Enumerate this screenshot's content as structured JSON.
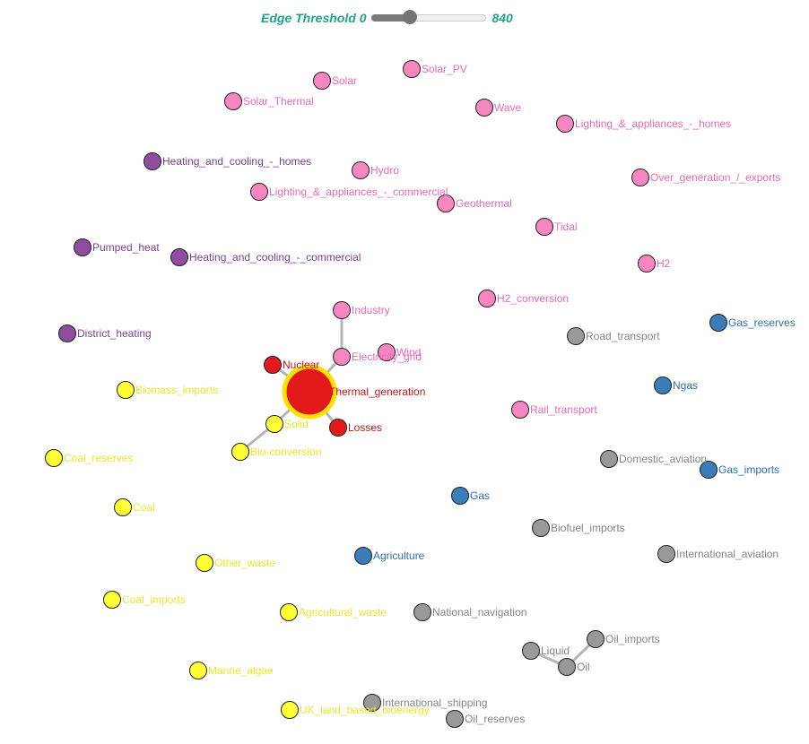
{
  "controls": {
    "label": "Edge Threshold",
    "min": "0",
    "max": "840",
    "value_fraction": 0.33
  },
  "colors": {
    "pink": "#f586c0",
    "purple": "#8e4da1",
    "yellow": "#ffff33",
    "red": "#e31a1c",
    "blue": "#3a7db8",
    "gray": "#999999",
    "pink_text": "#e96bb0",
    "purple_text": "#7e3f92",
    "yellow_text": "#e8e82a",
    "red_text": "#c81414",
    "blue_text": "#2f6fae",
    "gray_text": "#858585",
    "edge": "#b5b5b5",
    "highlight_ring": "#ffe100"
  },
  "nodes": [
    {
      "id": "Solar",
      "label": "Solar",
      "group": "pink"
    },
    {
      "id": "Solar_PV",
      "label": "Solar_PV",
      "group": "pink"
    },
    {
      "id": "Solar_Thermal",
      "label": "Solar_Thermal",
      "group": "pink"
    },
    {
      "id": "Wave",
      "label": "Wave",
      "group": "pink"
    },
    {
      "id": "Lighting_homes",
      "label": "Lighting_&_appliances_-_homes",
      "group": "pink"
    },
    {
      "id": "Heating_homes",
      "label": "Heating_and_cooling_-_homes",
      "group": "purple"
    },
    {
      "id": "Hydro",
      "label": "Hydro",
      "group": "pink"
    },
    {
      "id": "Lighting_commercial",
      "label": "Lighting_&_appliances_-_commercial",
      "group": "pink"
    },
    {
      "id": "Geothermal",
      "label": "Geothermal",
      "group": "pink"
    },
    {
      "id": "Over_generation",
      "label": "Over_generation_/_exports",
      "group": "pink"
    },
    {
      "id": "Tidal",
      "label": "Tidal",
      "group": "pink"
    },
    {
      "id": "Pumped_heat",
      "label": "Pumped_heat",
      "group": "purple"
    },
    {
      "id": "Heating_commercial",
      "label": "Heating_and_cooling_-_commercial",
      "group": "purple"
    },
    {
      "id": "H2",
      "label": "H2",
      "group": "pink"
    },
    {
      "id": "H2_conversion",
      "label": "H2_conversion",
      "group": "pink"
    },
    {
      "id": "Industry",
      "label": "Industry",
      "group": "pink"
    },
    {
      "id": "Gas_reserves",
      "label": "Gas_reserves",
      "group": "blue"
    },
    {
      "id": "District_heating",
      "label": "District_heating",
      "group": "purple"
    },
    {
      "id": "Road_transport",
      "label": "Road_transport",
      "group": "gray"
    },
    {
      "id": "Wind",
      "label": "Wind",
      "group": "pink"
    },
    {
      "id": "Electricity_grid",
      "label": "Electricity_grid",
      "group": "pink"
    },
    {
      "id": "Nuclear",
      "label": "Nuclear",
      "group": "red"
    },
    {
      "id": "Biomass_imports",
      "label": "Biomass_imports",
      "group": "yellow"
    },
    {
      "id": "Thermal_generation",
      "label": "Thermal_generation",
      "group": "red",
      "big": true
    },
    {
      "id": "Ngas",
      "label": "Ngas",
      "group": "blue"
    },
    {
      "id": "Rail_transport",
      "label": "Rail_transport",
      "group": "pink"
    },
    {
      "id": "Solid",
      "label": "Solid",
      "group": "yellow"
    },
    {
      "id": "Losses",
      "label": "Losses",
      "group": "red"
    },
    {
      "id": "Bio_conversion",
      "label": "Bio-conversion",
      "group": "yellow"
    },
    {
      "id": "Coal_reserves",
      "label": "Coal_reserves",
      "group": "yellow"
    },
    {
      "id": "Domestic_aviation",
      "label": "Domestic_aviation",
      "group": "gray"
    },
    {
      "id": "Gas_imports",
      "label": "Gas_imports",
      "group": "blue"
    },
    {
      "id": "Gas",
      "label": "Gas",
      "group": "blue"
    },
    {
      "id": "Coal",
      "label": "Coal",
      "group": "yellow"
    },
    {
      "id": "Biofuel_imports",
      "label": "Biofuel_imports",
      "group": "gray"
    },
    {
      "id": "Agriculture",
      "label": "Agriculture",
      "group": "blue"
    },
    {
      "id": "International_aviation",
      "label": "International_aviation",
      "group": "gray"
    },
    {
      "id": "Other_waste",
      "label": "Other_waste",
      "group": "yellow"
    },
    {
      "id": "Coal_imports",
      "label": "Coal_imports",
      "group": "yellow"
    },
    {
      "id": "Agricultural_waste",
      "label": "Agricultural_waste",
      "group": "yellow"
    },
    {
      "id": "National_navigation",
      "label": "National_navigation",
      "group": "gray"
    },
    {
      "id": "Oil_imports",
      "label": "Oil_imports",
      "group": "gray"
    },
    {
      "id": "Liquid",
      "label": "Liquid",
      "group": "gray"
    },
    {
      "id": "Oil",
      "label": "Oil",
      "group": "gray"
    },
    {
      "id": "Marine_algae",
      "label": "Marine_algae",
      "group": "yellow"
    },
    {
      "id": "International_shipping",
      "label": "International_shipping",
      "group": "gray"
    },
    {
      "id": "UK_land_based_bioenergy",
      "label": "UK_land_based_bioenergy",
      "group": "yellow"
    },
    {
      "id": "Oil_reserves",
      "label": "Oil_reserves",
      "group": "gray"
    }
  ],
  "edges": [
    {
      "source": "Industry",
      "target": "Electricity_grid"
    },
    {
      "source": "Electricity_grid",
      "target": "Thermal_generation"
    },
    {
      "source": "Nuclear",
      "target": "Thermal_generation"
    },
    {
      "source": "Solid",
      "target": "Thermal_generation"
    },
    {
      "source": "Thermal_generation",
      "target": "Losses"
    },
    {
      "source": "Bio_conversion",
      "target": "Solid"
    },
    {
      "source": "Liquid",
      "target": "Oil"
    },
    {
      "source": "Oil",
      "target": "Oil_imports"
    }
  ]
}
